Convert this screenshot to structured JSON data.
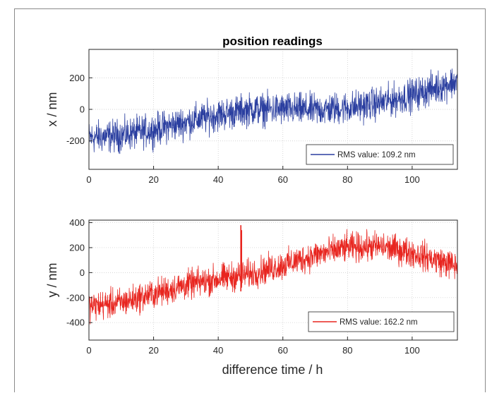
{
  "chart_data": [
    {
      "type": "line",
      "title": "position readings",
      "xlabel": "",
      "ylabel": "x / nm",
      "xlim": [
        0,
        114
      ],
      "ylim": [
        -380,
        380
      ],
      "xticks": [
        0,
        20,
        40,
        60,
        80,
        100
      ],
      "yticks": [
        -200,
        0,
        200
      ],
      "grid": true,
      "legend_position": "bottom-right",
      "series": [
        {
          "name": "RMS value: 109.2 nm",
          "color": "#2B3FA0",
          "trend_x": [
            0,
            10,
            20,
            30,
            40,
            50,
            60,
            70,
            80,
            90,
            100,
            114
          ],
          "trend_y": [
            -180,
            -165,
            -130,
            -80,
            -35,
            0,
            0,
            -5,
            10,
            40,
            90,
            180
          ],
          "noise_amplitude": 150
        }
      ]
    },
    {
      "type": "line",
      "title": "",
      "xlabel": "difference time / h",
      "ylabel": "y / nm",
      "xlim": [
        0,
        114
      ],
      "ylim": [
        -540,
        420
      ],
      "xticks": [
        0,
        20,
        40,
        60,
        80,
        100
      ],
      "yticks": [
        -400,
        -200,
        0,
        200,
        400
      ],
      "grid": true,
      "legend_position": "bottom-right",
      "series": [
        {
          "name": "RMS value: 162.2 nm",
          "color": "#E8251F",
          "trend_x": [
            0,
            10,
            20,
            30,
            40,
            50,
            60,
            70,
            80,
            90,
            100,
            114
          ],
          "trend_y": [
            -270,
            -240,
            -170,
            -100,
            -50,
            -10,
            60,
            140,
            200,
            210,
            160,
            50
          ],
          "noise_amplitude": 170,
          "spike_x": 47,
          "spike_y": [
            -150,
            380
          ]
        }
      ]
    }
  ]
}
